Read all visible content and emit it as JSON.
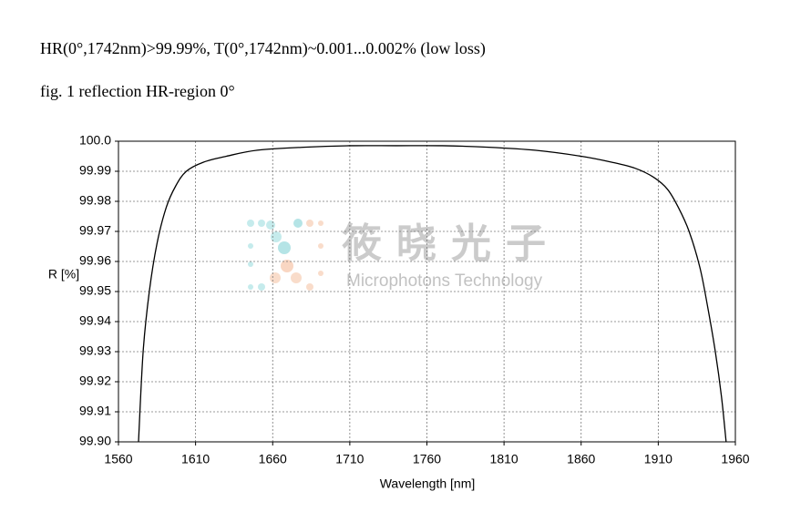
{
  "chart_data": {
    "type": "line",
    "title": "HR(0°,1742nm)>99.99%,  T(0°,1742nm)~0.001...0.002%  (low loss)",
    "subtitle": "fig. 1 reflection HR-region  0°",
    "x_label": "Wavelength [nm]",
    "y_label": "R [%]",
    "annotations": [
      "筱晓光子",
      "Microphotons Technology"
    ],
    "xlim": [
      1560,
      1960
    ],
    "xticks": [
      1560,
      1610,
      1660,
      1710,
      1760,
      1810,
      1860,
      1910,
      1960
    ],
    "ylim": [
      99.9,
      100
    ],
    "yticks": [
      {
        "value": 99.9,
        "label": "99.90"
      },
      99.91,
      99.92,
      99.93,
      99.94,
      99.95,
      99.96,
      99.97,
      99.98,
      99.99,
      {
        "value": 100,
        "label": "100.0"
      }
    ],
    "grid": true,
    "series": [
      {
        "color": "#000000",
        "x": [
          1573,
          1576,
          1580,
          1585,
          1591,
          1597,
          1604,
          1615,
          1630,
          1650,
          1680,
          1710,
          1740,
          1770,
          1800,
          1830,
          1860,
          1880,
          1895,
          1907,
          1916,
          1923,
          1930,
          1937,
          1942,
          1947,
          1951,
          1954
        ],
        "values": [
          99.9,
          99.93,
          99.95,
          99.966,
          99.978,
          99.985,
          99.99,
          99.993,
          99.995,
          99.997,
          99.998,
          99.9985,
          99.9985,
          99.9985,
          99.998,
          99.997,
          99.995,
          99.993,
          99.991,
          99.988,
          99.984,
          99.978,
          99.97,
          99.958,
          99.945,
          99.93,
          99.915,
          99.9
        ]
      }
    ]
  }
}
